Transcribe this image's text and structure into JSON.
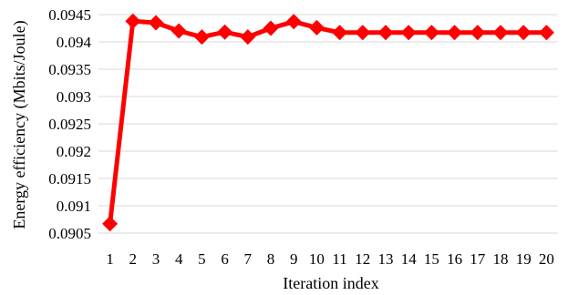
{
  "chart_data": {
    "type": "line",
    "title": "",
    "xlabel": "Iteration index",
    "ylabel": "Energy efficiency (Mbits/Joule)",
    "ylim": [
      0.0905,
      0.0945
    ],
    "yticks": [
      "0.0905",
      "0.091",
      "0.0915",
      "0.092",
      "0.0925",
      "0.093",
      "0.0935",
      "0.094",
      "0.0945"
    ],
    "grid": true,
    "legend": "none",
    "x": [
      1,
      2,
      3,
      4,
      5,
      6,
      7,
      8,
      9,
      10,
      11,
      12,
      13,
      14,
      15,
      16,
      17,
      18,
      19,
      20
    ],
    "series": [
      {
        "color": "#ff0000",
        "marker": "diamond",
        "values": [
          0.09067,
          0.09438,
          0.09435,
          0.0942,
          0.09409,
          0.09418,
          0.09409,
          0.09425,
          0.09437,
          0.09426,
          0.09417,
          0.09417,
          0.09417,
          0.09417,
          0.09417,
          0.09417,
          0.09417,
          0.09417,
          0.09417,
          0.09417
        ]
      }
    ]
  }
}
